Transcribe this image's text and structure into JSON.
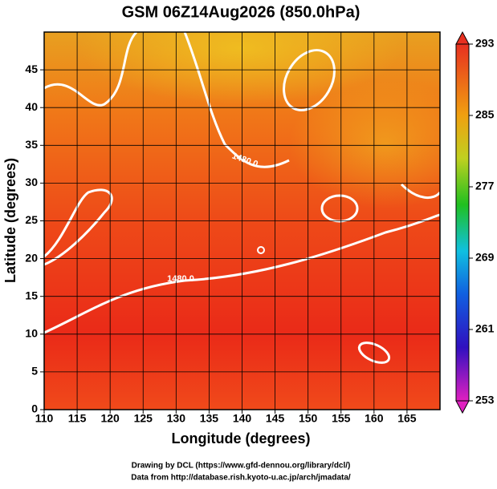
{
  "chart_data": {
    "type": "heatmap",
    "title": "GSM 06Z14Aug2026 (850.0hPa)",
    "xlabel": "Longitude (degrees)",
    "ylabel": "Latitude  (degrees)",
    "xlim": [
      110,
      170
    ],
    "xticks": [
      110,
      115,
      120,
      125,
      130,
      135,
      140,
      145,
      150,
      155,
      160,
      165
    ],
    "ylim": [
      0,
      50
    ],
    "yticks": [
      0,
      5,
      10,
      15,
      20,
      25,
      30,
      35,
      40,
      45
    ],
    "grid": true,
    "colorbar": {
      "lim": [
        253,
        293
      ],
      "ticks": [
        253,
        261,
        269,
        277,
        285,
        293
      ]
    },
    "annotations": [
      "1480.0",
      "1480.0"
    ],
    "footer": [
      "Drawing by DCL (https://www.gfd-dennou.org/library/dcl/)",
      "Data from http://database.rish.kyoto-u.ac.jp/arch/jmadata/"
    ]
  }
}
